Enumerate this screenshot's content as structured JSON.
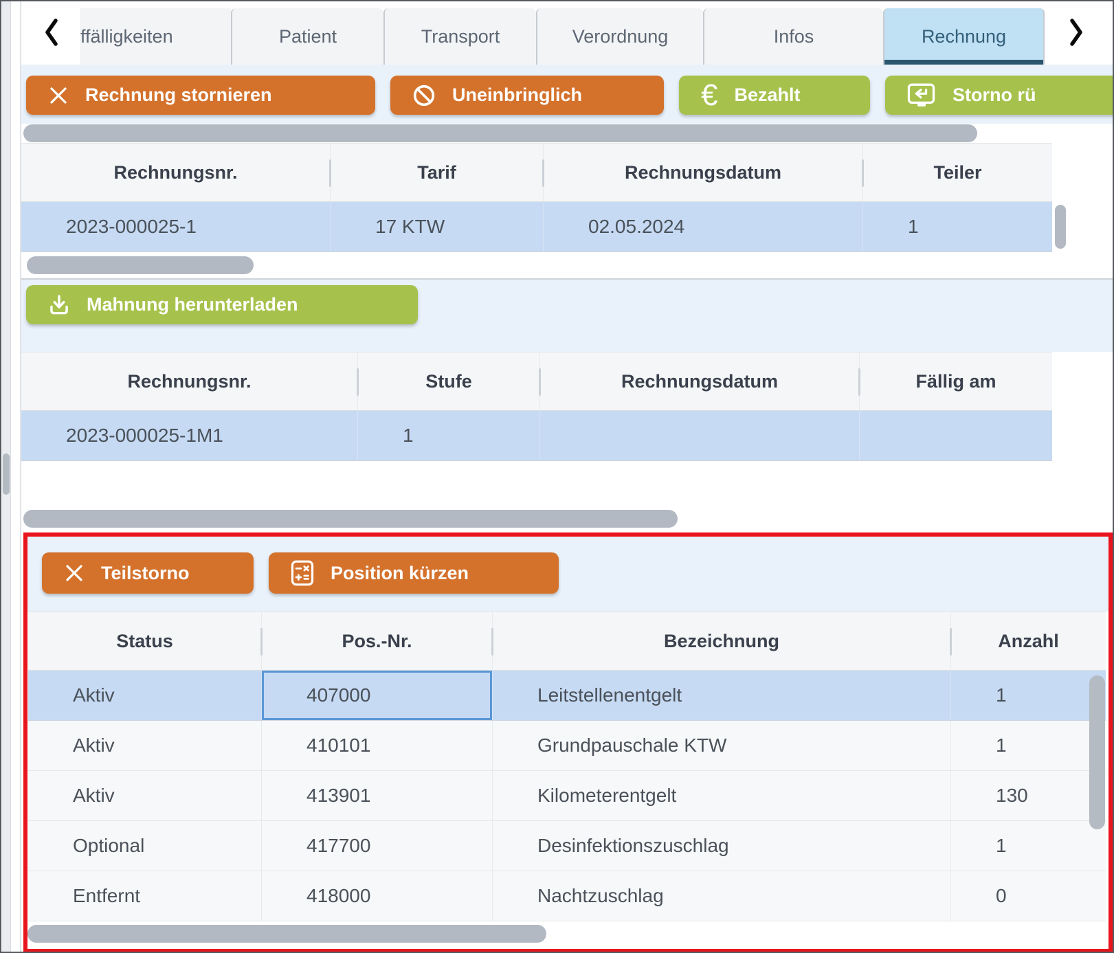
{
  "tab_bar": {
    "tabs": [
      {
        "label": "ffälligkeiten",
        "active": false
      },
      {
        "label": "Patient",
        "active": false
      },
      {
        "label": "Transport",
        "active": false
      },
      {
        "label": "Verordnung",
        "active": false
      },
      {
        "label": "Infos",
        "active": false
      },
      {
        "label": "Rechnung",
        "active": true
      }
    ]
  },
  "invoice_actions": [
    {
      "label": "Rechnung stornieren",
      "icon": "x-icon",
      "style": "orange"
    },
    {
      "label": "Uneinbringlich",
      "icon": "no-entry-icon",
      "style": "orange"
    },
    {
      "label": "Bezahlt",
      "icon": "euro-icon",
      "style": "green"
    },
    {
      "label": "Storno rü",
      "icon": "undo-monitor-icon",
      "style": "green"
    }
  ],
  "invoice_table": {
    "columns": [
      "Rechnungsnr.",
      "Tarif",
      "Rechnungsdatum",
      "Teiler"
    ],
    "rows": [
      [
        "2023-000025-1",
        "17 KTW",
        "02.05.2024",
        "1"
      ]
    ],
    "selected_row": 0
  },
  "dunning_section": {
    "download_label": "Mahnung herunterladen",
    "table": {
      "columns": [
        "Rechnungsnr.",
        "Stufe",
        "Rechnungsdatum",
        "Fällig am"
      ],
      "rows": [
        [
          "2023-000025-1M1",
          "1",
          "",
          ""
        ]
      ],
      "selected_row": 0
    }
  },
  "position_section": {
    "actions": [
      {
        "label": "Teilstorno",
        "icon": "x-icon"
      },
      {
        "label": "Position kürzen",
        "icon": "calculator-icon"
      }
    ],
    "table": {
      "columns": [
        "Status",
        "Pos.-Nr.",
        "Bezeichnung",
        "Anzahl"
      ],
      "rows": [
        [
          "Aktiv",
          "407000",
          "Leitstellenentgelt",
          "1"
        ],
        [
          "Aktiv",
          "410101",
          "Grundpauschale KTW",
          "1"
        ],
        [
          "Aktiv",
          "413901",
          "Kilometerentgelt",
          "130"
        ],
        [
          "Optional",
          "417700",
          "Desinfektionszuschlag",
          "1"
        ],
        [
          "Entfernt",
          "418000",
          "Nachtzuschlag",
          "0"
        ]
      ],
      "selected_row": 0,
      "focus_cell": [
        0,
        1
      ]
    }
  },
  "icons": {
    "euro": "€"
  },
  "colors": {
    "orange": "#d4722c",
    "green": "#a6c24c",
    "active_tab_bg": "#c0e1f3",
    "active_tab_underline": "#2a576e",
    "selected_row_bg": "#c6daf3",
    "highlight_border": "#e8151c",
    "scrollbar_thumb": "#b2b9c2"
  }
}
